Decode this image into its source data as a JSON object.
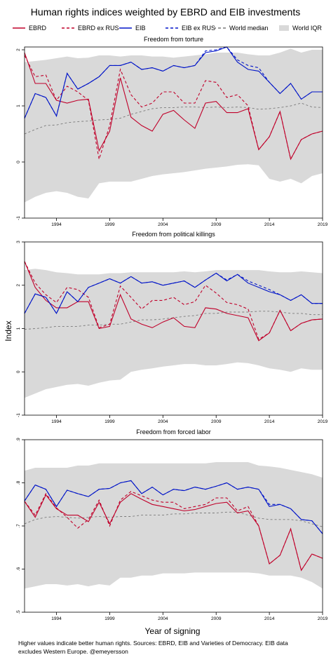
{
  "title": "Human rights indices weighted by EBRD and EIB investments",
  "legend": [
    {
      "label": "EBRD",
      "color": "#c0002a",
      "dash": "solid"
    },
    {
      "label": "EBRD ex RUS",
      "color": "#c0002a",
      "dash": "dashed"
    },
    {
      "label": "EIB",
      "color": "#0014c8",
      "dash": "solid"
    },
    {
      "label": "EIB ex RUS",
      "color": "#0014c8",
      "dash": "dashed"
    },
    {
      "label": "World median",
      "color": "#7a7a7a",
      "dash": "dashed"
    },
    {
      "label": "World IQR",
      "color": "#d9d9d9",
      "dash": "area"
    }
  ],
  "ylabel": "Index",
  "xlabel": "Year of signing",
  "note_lines": [
    "Higher values indicate better human rights. Sources: EBRD, EIB and Varieties of Democracy. EIB data",
    "excludes Western Europe. @emeyersson"
  ],
  "colors": {
    "ebrd": "#c0002a",
    "eib": "#0014c8",
    "median": "#7a7a7a",
    "iqr": "#d9d9d9"
  },
  "chart_data": [
    {
      "type": "line",
      "title": "Freedom from torture",
      "x": [
        1991,
        1992,
        1993,
        1994,
        1995,
        1996,
        1997,
        1998,
        1999,
        2000,
        2001,
        2002,
        2003,
        2004,
        2005,
        2006,
        2007,
        2008,
        2009,
        2010,
        2011,
        2012,
        2013,
        2014,
        2015,
        2016,
        2017,
        2018,
        2019
      ],
      "xticks": [
        1994,
        1999,
        2004,
        2009,
        2014,
        2019
      ],
      "yticks": [
        -1,
        0,
        1,
        2
      ],
      "ytick_labels": [
        "-1",
        "0",
        "1",
        "2"
      ],
      "ylim": [
        -1,
        2.05
      ],
      "series": [
        {
          "name": "EBRD",
          "values": [
            1.95,
            1.4,
            1.4,
            1.1,
            1.05,
            1.1,
            1.12,
            0.2,
            0.55,
            1.5,
            0.8,
            0.65,
            0.55,
            0.85,
            0.92,
            0.75,
            0.6,
            1.05,
            1.08,
            0.88,
            0.88,
            0.95,
            0.22,
            0.45,
            0.9,
            0.05,
            0.4,
            0.5,
            0.55
          ]
        },
        {
          "name": "EBRD ex RUS",
          "values": [
            1.9,
            1.52,
            1.55,
            1.1,
            1.35,
            1.25,
            1.1,
            0.05,
            0.65,
            1.65,
            1.2,
            0.98,
            1.05,
            1.25,
            1.25,
            1.05,
            1.05,
            1.45,
            1.42,
            1.15,
            1.2,
            1.0,
            0.22,
            0.45,
            0.9,
            0.05,
            0.4,
            0.5,
            0.55
          ]
        },
        {
          "name": "EIB",
          "values": [
            0.78,
            1.22,
            1.15,
            0.82,
            1.58,
            1.3,
            1.4,
            1.52,
            1.72,
            1.72,
            1.78,
            1.65,
            1.68,
            1.62,
            1.72,
            1.68,
            1.72,
            1.95,
            1.98,
            2.05,
            1.78,
            1.65,
            1.62,
            1.42,
            1.22,
            1.4,
            1.12,
            1.25,
            1.25
          ]
        },
        {
          "name": "EIB ex RUS",
          "values": [
            0.78,
            1.22,
            1.15,
            0.82,
            1.58,
            1.3,
            1.4,
            1.52,
            1.72,
            1.72,
            1.78,
            1.65,
            1.68,
            1.62,
            1.72,
            1.68,
            1.72,
            1.98,
            2.0,
            2.05,
            1.82,
            1.72,
            1.68,
            1.42,
            1.22,
            1.4,
            1.12,
            1.25,
            1.25
          ]
        },
        {
          "name": "World median",
          "values": [
            0.5,
            0.58,
            0.65,
            0.66,
            0.7,
            0.72,
            0.73,
            0.75,
            0.76,
            0.78,
            0.85,
            0.9,
            0.95,
            0.97,
            0.97,
            0.98,
            0.98,
            0.97,
            0.98,
            0.97,
            0.98,
            0.97,
            0.94,
            0.95,
            0.97,
            1.0,
            1.05,
            0.98,
            0.97
          ]
        },
        {
          "name": "World IQR",
          "lower": [
            -0.72,
            -0.62,
            -0.55,
            -0.52,
            -0.55,
            -0.62,
            -0.65,
            -0.38,
            -0.35,
            -0.35,
            -0.35,
            -0.3,
            -0.25,
            -0.22,
            -0.2,
            -0.18,
            -0.15,
            -0.12,
            -0.1,
            -0.08,
            -0.05,
            -0.04,
            -0.06,
            -0.3,
            -0.35,
            -0.3,
            -0.38,
            -0.25,
            -0.2
          ],
          "upper": [
            1.78,
            1.8,
            1.82,
            1.85,
            1.88,
            1.85,
            1.86,
            1.9,
            1.9,
            1.88,
            1.9,
            1.9,
            1.88,
            1.88,
            1.86,
            1.88,
            1.9,
            1.92,
            1.95,
            1.95,
            1.95,
            1.92,
            1.9,
            1.9,
            1.95,
            2.02,
            1.95,
            2.0,
            2.0
          ]
        }
      ]
    },
    {
      "type": "line",
      "title": "Freedom from political killings",
      "x": [
        1991,
        1992,
        1993,
        1994,
        1995,
        1996,
        1997,
        1998,
        1999,
        2000,
        2001,
        2002,
        2003,
        2004,
        2005,
        2006,
        2007,
        2008,
        2009,
        2010,
        2011,
        2012,
        2013,
        2014,
        2015,
        2016,
        2017,
        2018,
        2019
      ],
      "xticks": [
        1994,
        1999,
        2004,
        2009,
        2014,
        2019
      ],
      "yticks": [
        -1,
        0,
        1,
        2,
        3
      ],
      "ytick_labels": [
        "-1",
        "0",
        "1",
        "2",
        "3"
      ],
      "ylim": [
        -1,
        3
      ],
      "series": [
        {
          "name": "EBRD",
          "values": [
            2.55,
            1.95,
            1.65,
            1.48,
            1.48,
            1.62,
            1.62,
            1.0,
            1.05,
            1.78,
            1.22,
            1.1,
            1.02,
            1.15,
            1.25,
            1.05,
            1.02,
            1.48,
            1.45,
            1.35,
            1.3,
            1.25,
            0.72,
            0.9,
            1.42,
            0.95,
            1.12,
            1.2,
            1.22
          ]
        },
        {
          "name": "EBRD ex RUS",
          "values": [
            2.55,
            2.05,
            1.78,
            1.6,
            1.95,
            1.9,
            1.72,
            1.02,
            1.1,
            1.98,
            1.72,
            1.45,
            1.65,
            1.65,
            1.72,
            1.55,
            1.62,
            2.0,
            1.82,
            1.6,
            1.55,
            1.45,
            0.75,
            0.9,
            1.42,
            0.95,
            1.12,
            1.2,
            1.22
          ]
        },
        {
          "name": "EIB",
          "values": [
            1.35,
            1.8,
            1.72,
            1.35,
            1.85,
            1.62,
            1.95,
            2.05,
            2.15,
            2.05,
            2.2,
            2.05,
            2.08,
            2.0,
            2.05,
            2.1,
            1.95,
            2.12,
            2.28,
            2.1,
            2.25,
            2.05,
            1.95,
            1.85,
            1.78,
            1.65,
            1.78,
            1.58,
            1.58
          ]
        },
        {
          "name": "EIB ex RUS",
          "values": [
            1.35,
            1.8,
            1.72,
            1.35,
            1.85,
            1.62,
            1.95,
            2.05,
            2.15,
            2.05,
            2.2,
            2.05,
            2.08,
            2.0,
            2.05,
            2.1,
            1.95,
            2.12,
            2.28,
            2.12,
            2.25,
            2.1,
            2.0,
            1.9,
            1.78,
            1.65,
            1.78,
            1.58,
            1.58
          ]
        },
        {
          "name": "World median",
          "values": [
            0.98,
            1.0,
            1.02,
            1.05,
            1.05,
            1.05,
            1.08,
            1.08,
            1.1,
            1.1,
            1.15,
            1.2,
            1.2,
            1.22,
            1.25,
            1.28,
            1.3,
            1.35,
            1.35,
            1.38,
            1.38,
            1.38,
            1.4,
            1.4,
            1.38,
            1.35,
            1.35,
            1.32,
            1.32
          ]
        },
        {
          "name": "World IQR",
          "lower": [
            -0.6,
            -0.5,
            -0.4,
            -0.35,
            -0.3,
            -0.28,
            -0.32,
            -0.25,
            -0.2,
            -0.18,
            0.0,
            0.05,
            0.08,
            0.12,
            0.15,
            0.18,
            0.18,
            0.15,
            0.15,
            0.18,
            0.22,
            0.2,
            0.15,
            0.08,
            0.05,
            0.0,
            0.08,
            0.05,
            0.05
          ]
        },
        {
          "name": "World IQR upper",
          "upper": [
            2.35,
            2.38,
            2.35,
            2.3,
            2.28,
            2.25,
            2.25,
            2.25,
            2.28,
            2.28,
            2.3,
            2.3,
            2.3,
            2.3,
            2.3,
            2.32,
            2.3,
            2.32,
            2.35,
            2.35,
            2.35,
            2.35,
            2.35,
            2.32,
            2.3,
            2.3,
            2.32,
            2.3,
            2.28
          ]
        }
      ]
    },
    {
      "type": "line",
      "title": "Freedom from forced labor",
      "x": [
        1991,
        1992,
        1993,
        1994,
        1995,
        1996,
        1997,
        1998,
        1999,
        2000,
        2001,
        2002,
        2003,
        2004,
        2005,
        2006,
        2007,
        2008,
        2009,
        2010,
        2011,
        2012,
        2013,
        2014,
        2015,
        2016,
        2017,
        2018,
        2019
      ],
      "xticks": [
        1994,
        1999,
        2004,
        2009,
        2014,
        2019
      ],
      "yticks": [
        0.5,
        0.6,
        0.7,
        0.8,
        0.9
      ],
      "ytick_labels": [
        ".5",
        ".6",
        ".7",
        ".8",
        ".9"
      ],
      "ylim": [
        0.5,
        0.9
      ],
      "series": [
        {
          "name": "EBRD",
          "values": [
            0.757,
            0.72,
            0.772,
            0.74,
            0.725,
            0.725,
            0.71,
            0.755,
            0.705,
            0.755,
            0.775,
            0.762,
            0.75,
            0.745,
            0.74,
            0.735,
            0.738,
            0.745,
            0.752,
            0.755,
            0.73,
            0.735,
            0.7,
            0.612,
            0.632,
            0.693,
            0.597,
            0.635,
            0.625
          ]
        },
        {
          "name": "EBRD ex RUS",
          "values": [
            0.757,
            0.725,
            0.775,
            0.742,
            0.72,
            0.695,
            0.715,
            0.76,
            0.7,
            0.76,
            0.78,
            0.77,
            0.76,
            0.755,
            0.755,
            0.74,
            0.745,
            0.75,
            0.765,
            0.765,
            0.735,
            0.745,
            0.7,
            0.612,
            0.632,
            0.693,
            0.597,
            0.635,
            0.625
          ]
        },
        {
          "name": "EIB",
          "values": [
            0.758,
            0.795,
            0.785,
            0.745,
            0.783,
            0.775,
            0.768,
            0.785,
            0.787,
            0.8,
            0.805,
            0.775,
            0.79,
            0.772,
            0.785,
            0.782,
            0.79,
            0.785,
            0.792,
            0.8,
            0.785,
            0.79,
            0.785,
            0.745,
            0.75,
            0.74,
            0.715,
            0.712,
            0.682
          ]
        },
        {
          "name": "EIB ex RUS",
          "values": [
            0.758,
            0.795,
            0.785,
            0.745,
            0.783,
            0.775,
            0.768,
            0.785,
            0.787,
            0.8,
            0.805,
            0.775,
            0.79,
            0.772,
            0.785,
            0.782,
            0.79,
            0.785,
            0.792,
            0.8,
            0.785,
            0.79,
            0.785,
            0.75,
            0.75,
            0.74,
            0.715,
            0.712,
            0.682
          ]
        },
        {
          "name": "World median",
          "values": [
            0.705,
            0.715,
            0.72,
            0.722,
            0.72,
            0.718,
            0.72,
            0.722,
            0.72,
            0.722,
            0.722,
            0.725,
            0.725,
            0.725,
            0.728,
            0.728,
            0.73,
            0.73,
            0.73,
            0.732,
            0.732,
            0.725,
            0.718,
            0.715,
            0.715,
            0.715,
            0.712,
            0.705,
            0.698
          ]
        },
        {
          "name": "World IQR",
          "lower": [
            0.555,
            0.56,
            0.565,
            0.565,
            0.562,
            0.565,
            0.56,
            0.565,
            0.562,
            0.58,
            0.58,
            0.585,
            0.585,
            0.59,
            0.59,
            0.59,
            0.592,
            0.592,
            0.592,
            0.592,
            0.592,
            0.592,
            0.59,
            0.585,
            0.585,
            0.585,
            0.58,
            0.57,
            0.555
          ],
          "upper": [
            0.828,
            0.835,
            0.835,
            0.835,
            0.835,
            0.84,
            0.84,
            0.845,
            0.845,
            0.845,
            0.845,
            0.845,
            0.845,
            0.845,
            0.845,
            0.845,
            0.845,
            0.845,
            0.848,
            0.848,
            0.848,
            0.848,
            0.84,
            0.838,
            0.835,
            0.83,
            0.825,
            0.82,
            0.812
          ]
        }
      ]
    }
  ]
}
